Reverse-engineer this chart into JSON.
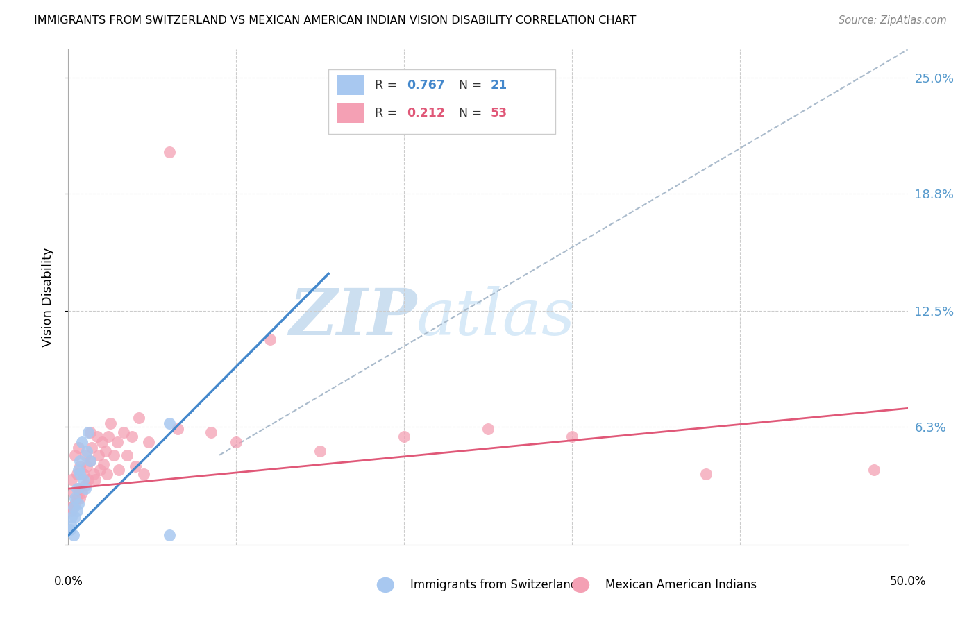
{
  "title": "IMMIGRANTS FROM SWITZERLAND VS MEXICAN AMERICAN INDIAN VISION DISABILITY CORRELATION CHART",
  "source": "Source: ZipAtlas.com",
  "ylabel": "Vision Disability",
  "yticks": [
    0.0,
    0.063,
    0.125,
    0.188,
    0.25
  ],
  "ytick_labels": [
    "",
    "6.3%",
    "12.5%",
    "18.8%",
    "25.0%"
  ],
  "xlim": [
    0.0,
    0.5
  ],
  "ylim": [
    0.0,
    0.265
  ],
  "watermark_zip": "ZIP",
  "watermark_atlas": "atlas",
  "series1_label": "Immigrants from Switzerland",
  "series2_label": "Mexican American Indians",
  "series1_color": "#a8c8f0",
  "series2_color": "#f4a0b4",
  "line1_color": "#4488cc",
  "line2_color": "#e05878",
  "dashed_line_color": "#aabbcc",
  "background_color": "#ffffff",
  "grid_color": "#cccccc",
  "swiss_x": [
    0.001,
    0.002,
    0.002,
    0.003,
    0.003,
    0.004,
    0.004,
    0.005,
    0.005,
    0.006,
    0.006,
    0.007,
    0.007,
    0.008,
    0.009,
    0.01,
    0.011,
    0.012,
    0.013,
    0.06,
    0.06
  ],
  "swiss_y": [
    0.008,
    0.01,
    0.015,
    0.02,
    0.005,
    0.015,
    0.025,
    0.018,
    0.03,
    0.022,
    0.04,
    0.038,
    0.045,
    0.055,
    0.035,
    0.03,
    0.05,
    0.06,
    0.045,
    0.065,
    0.005
  ],
  "blue_line_x": [
    0.0,
    0.155
  ],
  "blue_line_y": [
    0.005,
    0.145
  ],
  "pink_line_x": [
    0.0,
    0.5
  ],
  "pink_line_y": [
    0.03,
    0.073
  ],
  "dash_line_x": [
    0.09,
    0.5
  ],
  "dash_line_y": [
    0.048,
    0.265
  ],
  "mexican_x": [
    0.001,
    0.002,
    0.002,
    0.003,
    0.004,
    0.004,
    0.005,
    0.005,
    0.006,
    0.006,
    0.007,
    0.007,
    0.008,
    0.009,
    0.01,
    0.01,
    0.011,
    0.012,
    0.013,
    0.013,
    0.014,
    0.015,
    0.016,
    0.017,
    0.018,
    0.019,
    0.02,
    0.021,
    0.022,
    0.023,
    0.024,
    0.025,
    0.027,
    0.029,
    0.03,
    0.033,
    0.035,
    0.038,
    0.04,
    0.042,
    0.045,
    0.048,
    0.06,
    0.065,
    0.085,
    0.1,
    0.12,
    0.15,
    0.2,
    0.25,
    0.3,
    0.38,
    0.48
  ],
  "mexican_y": [
    0.02,
    0.018,
    0.035,
    0.028,
    0.022,
    0.048,
    0.025,
    0.038,
    0.03,
    0.052,
    0.025,
    0.042,
    0.028,
    0.038,
    0.032,
    0.048,
    0.042,
    0.035,
    0.06,
    0.045,
    0.052,
    0.038,
    0.035,
    0.058,
    0.048,
    0.04,
    0.055,
    0.043,
    0.05,
    0.038,
    0.058,
    0.065,
    0.048,
    0.055,
    0.04,
    0.06,
    0.048,
    0.058,
    0.042,
    0.068,
    0.038,
    0.055,
    0.21,
    0.062,
    0.06,
    0.055,
    0.11,
    0.05,
    0.058,
    0.062,
    0.058,
    0.038,
    0.04
  ]
}
